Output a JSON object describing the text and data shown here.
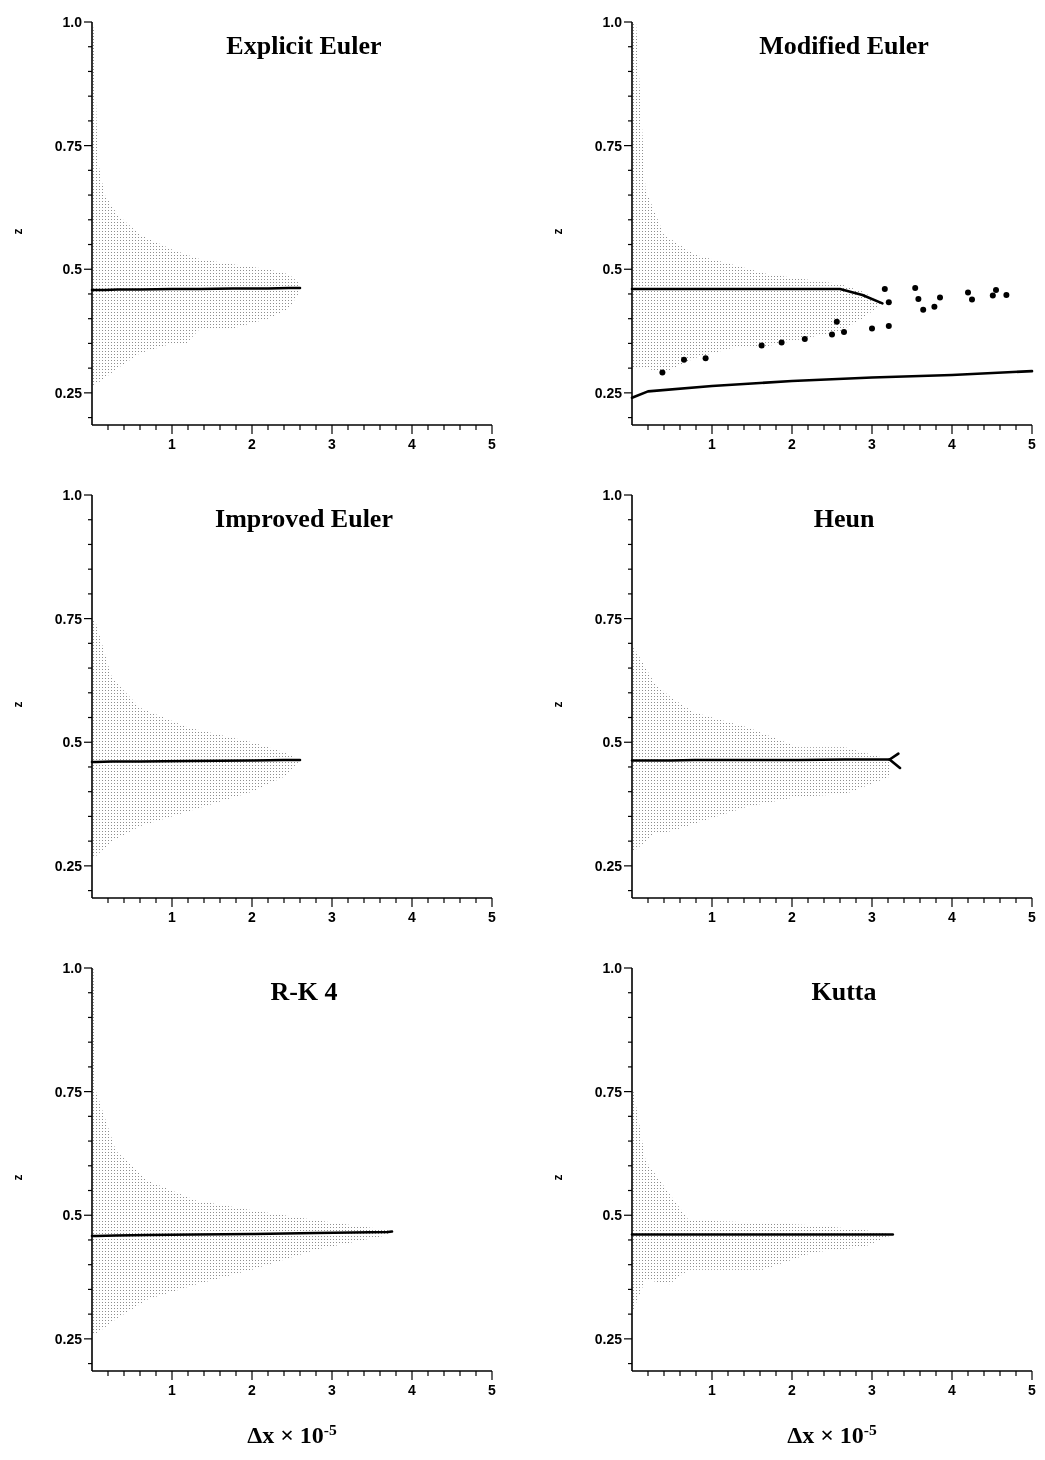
{
  "chart_data": [
    {
      "type": "line",
      "title": "Explicit Euler",
      "ylabel": "z",
      "xlim": [
        0,
        5
      ],
      "ylim": [
        0.185,
        1
      ],
      "xticks": [
        {
          "value": 0.2,
          "label": null
        },
        {
          "value": 0.4,
          "label": null
        },
        {
          "value": 0.6,
          "label": null
        },
        {
          "value": 0.8,
          "label": null
        },
        1,
        {
          "value": 1.2,
          "label": null
        },
        {
          "value": 1.4,
          "label": null
        },
        {
          "value": 1.6,
          "label": null
        },
        {
          "value": 1.8,
          "label": null
        },
        2,
        {
          "value": 2.2,
          "label": null
        },
        {
          "value": 2.4,
          "label": null
        },
        {
          "value": 2.6,
          "label": null
        },
        {
          "value": 2.8,
          "label": null
        },
        3,
        {
          "value": 3.2,
          "label": null
        },
        {
          "value": 3.4,
          "label": null
        },
        {
          "value": 3.6,
          "label": null
        },
        {
          "value": 3.8,
          "label": null
        },
        4,
        {
          "value": 4.2,
          "label": null
        },
        {
          "value": 4.4,
          "label": null
        },
        {
          "value": 4.6,
          "label": null
        },
        {
          "value": 4.8,
          "label": null
        },
        5
      ],
      "yticks": [
        {
          "value": 0.2,
          "label": null
        },
        0.25,
        {
          "value": 0.3,
          "label": null
        },
        {
          "value": 0.35,
          "label": null
        },
        {
          "value": 0.4,
          "label": null
        },
        {
          "value": 0.45,
          "label": null
        },
        0.5,
        {
          "value": 0.55,
          "label": null
        },
        {
          "value": 0.6,
          "label": null
        },
        {
          "value": 0.65,
          "label": null
        },
        {
          "value": 0.7,
          "label": null
        },
        0.75,
        {
          "value": 0.8,
          "label": null
        },
        {
          "value": 0.85,
          "label": null
        },
        {
          "value": 0.9,
          "label": null
        },
        {
          "value": 0.95,
          "label": null
        },
        {
          "value": 1,
          "label": "1.0"
        }
      ],
      "series": [
        {
          "color": "#000000",
          "x": [
            0,
            0.03,
            0.07,
            0.16,
            0.32,
            0.6,
            1.0,
            1.18,
            1.35,
            1.76,
            2.2,
            2.46,
            2.6
          ],
          "values": [
            0.458,
            0.458,
            0.458,
            0.458,
            0.459,
            0.459,
            0.46,
            0.46,
            0.46,
            0.461,
            0.461,
            0.462,
            0.462
          ],
          "upper": [
            1.0,
            0.98,
            0.72,
            0.65,
            0.61,
            0.57,
            0.54,
            0.53,
            0.52,
            0.51,
            0.5,
            0.49,
            0.47
          ],
          "lower": [
            0.26,
            0.267,
            0.27,
            0.28,
            0.3,
            0.33,
            0.35,
            0.35,
            0.38,
            0.38,
            0.4,
            0.42,
            0.455
          ]
        }
      ]
    },
    {
      "type": "line",
      "title": "Modified Euler",
      "ylabel": "z",
      "xlim": [
        0,
        5
      ],
      "ylim": [
        0.185,
        1
      ],
      "xticks": [
        {
          "value": 0.2,
          "label": null
        },
        {
          "value": 0.4,
          "label": null
        },
        {
          "value": 0.6,
          "label": null
        },
        {
          "value": 0.8,
          "label": null
        },
        1,
        {
          "value": 1.2,
          "label": null
        },
        {
          "value": 1.4,
          "label": null
        },
        {
          "value": 1.6,
          "label": null
        },
        {
          "value": 1.8,
          "label": null
        },
        2,
        {
          "value": 2.2,
          "label": null
        },
        {
          "value": 2.4,
          "label": null
        },
        {
          "value": 2.6,
          "label": null
        },
        {
          "value": 2.8,
          "label": null
        },
        3,
        {
          "value": 3.2,
          "label": null
        },
        {
          "value": 3.4,
          "label": null
        },
        {
          "value": 3.6,
          "label": null
        },
        {
          "value": 3.8,
          "label": null
        },
        4,
        {
          "value": 4.2,
          "label": null
        },
        {
          "value": 4.4,
          "label": null
        },
        {
          "value": 4.6,
          "label": null
        },
        {
          "value": 4.8,
          "label": null
        },
        5
      ],
      "yticks": [
        {
          "value": 0.2,
          "label": null
        },
        0.25,
        {
          "value": 0.3,
          "label": null
        },
        {
          "value": 0.35,
          "label": null
        },
        {
          "value": 0.4,
          "label": null
        },
        {
          "value": 0.45,
          "label": null
        },
        0.5,
        {
          "value": 0.55,
          "label": null
        },
        {
          "value": 0.6,
          "label": null
        },
        {
          "value": 0.65,
          "label": null
        },
        {
          "value": 0.7,
          "label": null
        },
        0.75,
        {
          "value": 0.8,
          "label": null
        },
        {
          "value": 0.85,
          "label": null
        },
        {
          "value": 0.9,
          "label": null
        },
        {
          "value": 0.95,
          "label": null
        },
        {
          "value": 1,
          "label": "1.0"
        }
      ],
      "series": [
        {
          "color": "#000000",
          "x": [
            0,
            0.05,
            0.17,
            0.4,
            0.78,
            1.24,
            1.7,
            2.16,
            2.6,
            2.88,
            3.13
          ],
          "values": [
            0.46,
            0.46,
            0.46,
            0.46,
            0.46,
            0.46,
            0.46,
            0.46,
            0.46,
            0.448,
            0.431
          ],
          "upper": [
            1.0,
            1.0,
            0.66,
            0.57,
            0.53,
            0.51,
            0.49,
            0.48,
            0.47,
            0.455,
            0.431
          ],
          "lower": [
            0.3,
            0.3,
            0.3,
            0.29,
            0.32,
            0.34,
            0.345,
            0.36,
            0.375,
            0.4,
            0.431
          ]
        },
        {
          "color": "#000000",
          "x": [
            0,
            0.2,
            1,
            2,
            3,
            4,
            5
          ],
          "values": [
            0.24,
            0.253,
            0.264,
            0.274,
            0.281,
            0.286,
            0.294
          ]
        },
        {
          "type": "scatter",
          "marker": "circle",
          "color": "#000000",
          "x": [
            3.16,
            3.21,
            3.54,
            3.58,
            3.64,
            3.85,
            3.78,
            4.2,
            4.25,
            4.55,
            4.68,
            4.51,
            2.56,
            2.65,
            3.0,
            3.21,
            2.5,
            2.16,
            1.87,
            1.62,
            0.92,
            0.65,
            0.38
          ],
          "values": [
            0.46,
            0.433,
            0.462,
            0.44,
            0.418,
            0.443,
            0.424,
            0.453,
            0.439,
            0.458,
            0.448,
            0.447,
            0.394,
            0.373,
            0.38,
            0.385,
            0.368,
            0.359,
            0.352,
            0.346,
            0.32,
            0.317,
            0.291
          ]
        }
      ]
    },
    {
      "type": "line",
      "title": "Improved Euler",
      "ylabel": "z",
      "xlim": [
        0,
        5
      ],
      "ylim": [
        0.185,
        1
      ],
      "xticks": [
        {
          "value": 0.2,
          "label": null
        },
        {
          "value": 0.4,
          "label": null
        },
        {
          "value": 0.6,
          "label": null
        },
        {
          "value": 0.8,
          "label": null
        },
        1,
        {
          "value": 1.2,
          "label": null
        },
        {
          "value": 1.4,
          "label": null
        },
        {
          "value": 1.6,
          "label": null
        },
        {
          "value": 1.8,
          "label": null
        },
        2,
        {
          "value": 2.2,
          "label": null
        },
        {
          "value": 2.4,
          "label": null
        },
        {
          "value": 2.6,
          "label": null
        },
        {
          "value": 2.8,
          "label": null
        },
        3,
        {
          "value": 3.2,
          "label": null
        },
        {
          "value": 3.4,
          "label": null
        },
        {
          "value": 3.6,
          "label": null
        },
        {
          "value": 3.8,
          "label": null
        },
        4,
        {
          "value": 4.2,
          "label": null
        },
        {
          "value": 4.4,
          "label": null
        },
        {
          "value": 4.6,
          "label": null
        },
        {
          "value": 4.8,
          "label": null
        },
        5
      ],
      "yticks": [
        {
          "value": 0.2,
          "label": null
        },
        0.25,
        {
          "value": 0.3,
          "label": null
        },
        {
          "value": 0.35,
          "label": null
        },
        {
          "value": 0.4,
          "label": null
        },
        {
          "value": 0.45,
          "label": null
        },
        0.5,
        {
          "value": 0.55,
          "label": null
        },
        {
          "value": 0.6,
          "label": null
        },
        {
          "value": 0.65,
          "label": null
        },
        {
          "value": 0.7,
          "label": null
        },
        0.75,
        {
          "value": 0.8,
          "label": null
        },
        {
          "value": 0.85,
          "label": null
        },
        {
          "value": 0.9,
          "label": null
        },
        {
          "value": 0.95,
          "label": null
        },
        {
          "value": 1,
          "label": "1.0"
        }
      ],
      "series": [
        {
          "color": "#000000",
          "x": [
            0,
            0.05,
            0.25,
            0.6,
            1.2,
            2.0,
            2.4,
            2.6
          ],
          "values": [
            0.46,
            0.46,
            0.461,
            0.461,
            0.462,
            0.463,
            0.464,
            0.464
          ],
          "upper": [
            0.75,
            0.74,
            0.63,
            0.57,
            0.53,
            0.5,
            0.48,
            0.465
          ],
          "lower": [
            0.27,
            0.27,
            0.3,
            0.33,
            0.36,
            0.4,
            0.43,
            0.463
          ]
        }
      ]
    },
    {
      "type": "line",
      "title": "Heun",
      "ylabel": "z",
      "xlim": [
        0,
        5
      ],
      "ylim": [
        0.185,
        1
      ],
      "xticks": [
        {
          "value": 0.2,
          "label": null
        },
        {
          "value": 0.4,
          "label": null
        },
        {
          "value": 0.6,
          "label": null
        },
        {
          "value": 0.8,
          "label": null
        },
        1,
        {
          "value": 1.2,
          "label": null
        },
        {
          "value": 1.4,
          "label": null
        },
        {
          "value": 1.6,
          "label": null
        },
        {
          "value": 1.8,
          "label": null
        },
        2,
        {
          "value": 2.2,
          "label": null
        },
        {
          "value": 2.4,
          "label": null
        },
        {
          "value": 2.6,
          "label": null
        },
        {
          "value": 2.8,
          "label": null
        },
        3,
        {
          "value": 3.2,
          "label": null
        },
        {
          "value": 3.4,
          "label": null
        },
        {
          "value": 3.6,
          "label": null
        },
        {
          "value": 3.8,
          "label": null
        },
        4,
        {
          "value": 4.2,
          "label": null
        },
        {
          "value": 4.4,
          "label": null
        },
        {
          "value": 4.6,
          "label": null
        },
        {
          "value": 4.8,
          "label": null
        },
        5
      ],
      "yticks": [
        {
          "value": 0.2,
          "label": null
        },
        0.25,
        {
          "value": 0.3,
          "label": null
        },
        {
          "value": 0.35,
          "label": null
        },
        {
          "value": 0.4,
          "label": null
        },
        {
          "value": 0.45,
          "label": null
        },
        0.5,
        {
          "value": 0.55,
          "label": null
        },
        {
          "value": 0.6,
          "label": null
        },
        {
          "value": 0.65,
          "label": null
        },
        {
          "value": 0.7,
          "label": null
        },
        0.75,
        {
          "value": 0.8,
          "label": null
        },
        {
          "value": 0.85,
          "label": null
        },
        {
          "value": 0.9,
          "label": null
        },
        {
          "value": 0.95,
          "label": null
        },
        {
          "value": 1,
          "label": "1.0"
        }
      ],
      "series": [
        {
          "color": "#000000",
          "x": [
            0,
            0.03,
            0.28,
            0.49,
            0.78,
            1.45,
            2.08,
            2.66,
            3.22
          ],
          "values": [
            0.463,
            0.463,
            0.463,
            0.463,
            0.464,
            0.464,
            0.464,
            0.465,
            0.465
          ],
          "upper": [
            0.69,
            0.69,
            0.62,
            0.59,
            0.56,
            0.53,
            0.49,
            0.49,
            0.465
          ],
          "lower": [
            0.28,
            0.28,
            0.315,
            0.32,
            0.335,
            0.37,
            0.39,
            0.395,
            0.43
          ]
        },
        {
          "color": "#000000",
          "x": [
            3.22,
            3.33
          ],
          "values": [
            0.465,
            0.477
          ]
        },
        {
          "color": "#000000",
          "x": [
            3.22,
            3.35
          ],
          "values": [
            0.465,
            0.448
          ]
        }
      ]
    },
    {
      "type": "line",
      "title": "R-K 4",
      "ylabel": "z",
      "xlabel": "Δx × 10$^{-5}$",
      "xlim": [
        0,
        5
      ],
      "ylim": [
        0.185,
        1
      ],
      "xticks": [
        {
          "value": 0.2,
          "label": null
        },
        {
          "value": 0.4,
          "label": null
        },
        {
          "value": 0.6,
          "label": null
        },
        {
          "value": 0.8,
          "label": null
        },
        1,
        {
          "value": 1.2,
          "label": null
        },
        {
          "value": 1.4,
          "label": null
        },
        {
          "value": 1.6,
          "label": null
        },
        {
          "value": 1.8,
          "label": null
        },
        2,
        {
          "value": 2.2,
          "label": null
        },
        {
          "value": 2.4,
          "label": null
        },
        {
          "value": 2.6,
          "label": null
        },
        {
          "value": 2.8,
          "label": null
        },
        3,
        {
          "value": 3.2,
          "label": null
        },
        {
          "value": 3.4,
          "label": null
        },
        {
          "value": 3.6,
          "label": null
        },
        {
          "value": 3.8,
          "label": null
        },
        4,
        {
          "value": 4.2,
          "label": null
        },
        {
          "value": 4.4,
          "label": null
        },
        {
          "value": 4.6,
          "label": null
        },
        {
          "value": 4.8,
          "label": null
        },
        5
      ],
      "yticks": [
        {
          "value": 0.2,
          "label": null
        },
        0.25,
        {
          "value": 0.3,
          "label": null
        },
        {
          "value": 0.35,
          "label": null
        },
        {
          "value": 0.4,
          "label": null
        },
        {
          "value": 0.45,
          "label": null
        },
        0.5,
        {
          "value": 0.55,
          "label": null
        },
        {
          "value": 0.6,
          "label": null
        },
        {
          "value": 0.65,
          "label": null
        },
        {
          "value": 0.7,
          "label": null
        },
        0.75,
        {
          "value": 0.8,
          "label": null
        },
        {
          "value": 0.85,
          "label": null
        },
        {
          "value": 0.9,
          "label": null
        },
        {
          "value": 0.95,
          "label": null
        },
        {
          "value": 1,
          "label": "1.0"
        }
      ],
      "series": [
        {
          "color": "#000000",
          "x": [
            0,
            0.02,
            0.05,
            0.3,
            0.7,
            1.3,
            2.0,
            2.8,
            3.7,
            3.75
          ],
          "values": [
            0.458,
            0.458,
            0.458,
            0.459,
            0.46,
            0.461,
            0.462,
            0.464,
            0.466,
            0.467
          ],
          "upper": [
            1.0,
            1.0,
            0.75,
            0.63,
            0.57,
            0.53,
            0.51,
            0.49,
            0.47,
            0.467
          ],
          "lower": [
            0.26,
            0.26,
            0.26,
            0.29,
            0.33,
            0.36,
            0.39,
            0.43,
            0.46,
            0.467
          ]
        }
      ]
    },
    {
      "type": "line",
      "title": "Kutta",
      "ylabel": "z",
      "xlabel": "Δx × 10$^{-5}$",
      "xlim": [
        0,
        5
      ],
      "ylim": [
        0.185,
        1
      ],
      "xticks": [
        {
          "value": 0.2,
          "label": null
        },
        {
          "value": 0.4,
          "label": null
        },
        {
          "value": 0.6,
          "label": null
        },
        {
          "value": 0.8,
          "label": null
        },
        1,
        {
          "value": 1.2,
          "label": null
        },
        {
          "value": 1.4,
          "label": null
        },
        {
          "value": 1.6,
          "label": null
        },
        {
          "value": 1.8,
          "label": null
        },
        2,
        {
          "value": 2.2,
          "label": null
        },
        {
          "value": 2.4,
          "label": null
        },
        {
          "value": 2.6,
          "label": null
        },
        {
          "value": 2.8,
          "label": null
        },
        3,
        {
          "value": 3.2,
          "label": null
        },
        {
          "value": 3.4,
          "label": null
        },
        {
          "value": 3.6,
          "label": null
        },
        {
          "value": 3.8,
          "label": null
        },
        4,
        {
          "value": 4.2,
          "label": null
        },
        {
          "value": 4.4,
          "label": null
        },
        {
          "value": 4.6,
          "label": null
        },
        {
          "value": 4.8,
          "label": null
        },
        5
      ],
      "yticks": [
        {
          "value": 0.2,
          "label": null
        },
        0.25,
        {
          "value": 0.3,
          "label": null
        },
        {
          "value": 0.35,
          "label": null
        },
        {
          "value": 0.4,
          "label": null
        },
        {
          "value": 0.45,
          "label": null
        },
        0.5,
        {
          "value": 0.55,
          "label": null
        },
        {
          "value": 0.6,
          "label": null
        },
        {
          "value": 0.65,
          "label": null
        },
        {
          "value": 0.7,
          "label": null
        },
        0.75,
        {
          "value": 0.8,
          "label": null
        },
        {
          "value": 0.85,
          "label": null
        },
        {
          "value": 0.9,
          "label": null
        },
        {
          "value": 0.95,
          "label": null
        },
        {
          "value": 1,
          "label": "1.0"
        }
      ],
      "series": [
        {
          "color": "#000000",
          "x": [
            0,
            0.02,
            0.17,
            0.46,
            0.71,
            1.64,
            2.27,
            2.9,
            3.26
          ],
          "values": [
            0.461,
            0.461,
            0.461,
            0.461,
            0.461,
            0.461,
            0.461,
            0.461,
            0.461
          ],
          "upper": [
            0.75,
            0.75,
            0.61,
            0.545,
            0.49,
            0.485,
            0.48,
            0.47,
            0.461
          ],
          "lower": [
            0.31,
            0.31,
            0.37,
            0.36,
            0.39,
            0.39,
            0.425,
            0.436,
            0.461
          ]
        }
      ]
    }
  ]
}
